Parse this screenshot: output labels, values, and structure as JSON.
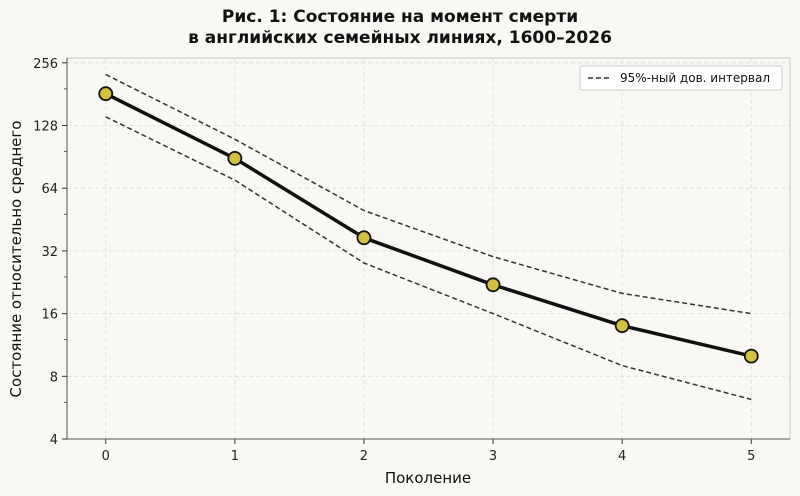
{
  "chart_data": {
    "type": "line",
    "title_line1": "Рис. 1: Состояние на момент смерти",
    "title_line2": "в английских семейных линиях, 1600–2026",
    "xlabel": "Поколение",
    "ylabel": "Состояние относительно среднего",
    "x": [
      0,
      1,
      2,
      3,
      4,
      5
    ],
    "xlim": [
      -0.3,
      5.3
    ],
    "yscale": "log2",
    "ylim": [
      4,
      270
    ],
    "yticks": [
      4,
      8,
      16,
      32,
      64,
      128,
      256
    ],
    "grid": true,
    "legend_position": "top-right",
    "series": [
      {
        "role": "mean",
        "values": [
          182,
          89,
          37,
          22,
          14,
          10
        ],
        "color": "#111111",
        "marker_color": "#d4c23e"
      },
      {
        "role": "ci_upper",
        "name": "95%-ный дов. интервал",
        "values": [
          225,
          110,
          50,
          30,
          20,
          16
        ],
        "color": "#333333",
        "style": "dashed"
      },
      {
        "role": "ci_lower",
        "values": [
          141,
          70,
          28,
          16,
          9,
          6.2
        ],
        "color": "#333333",
        "style": "dashed"
      }
    ]
  }
}
